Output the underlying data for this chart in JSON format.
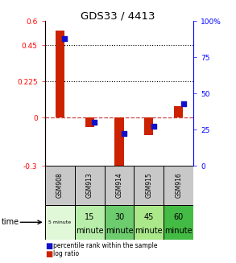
{
  "title": "GDS33 / 4413",
  "samples": [
    "GSM908",
    "GSM913",
    "GSM914",
    "GSM915",
    "GSM916"
  ],
  "time_labels_row1": [
    "5 minute",
    "15",
    "30",
    "45",
    "60"
  ],
  "time_labels_row2": [
    "",
    "minute",
    "minute",
    "minute",
    "minute"
  ],
  "time_colors": [
    "#e0f8d8",
    "#b8eeaa",
    "#6dcc6d",
    "#aae88a",
    "#44bb44"
  ],
  "log_ratios": [
    0.54,
    -0.06,
    -0.34,
    -0.11,
    0.07
  ],
  "percentile_ranks": [
    88,
    30,
    22,
    27,
    43
  ],
  "ylim_left": [
    -0.3,
    0.6
  ],
  "ylim_right": [
    0,
    100
  ],
  "yticks_left": [
    -0.3,
    0,
    0.225,
    0.45,
    0.6
  ],
  "ytick_labels_left": [
    "-0.3",
    "0",
    "0.225",
    "0.45",
    "0.6"
  ],
  "yticks_right": [
    0,
    25,
    50,
    75,
    100
  ],
  "ytick_labels_right": [
    "0",
    "25",
    "50",
    "75",
    "100%"
  ],
  "hlines": [
    0.225,
    0.45
  ],
  "bar_color": "#cc2200",
  "dot_color": "#1111cc",
  "zero_line_color": "#cc4444",
  "cell_color": "#c8c8c8",
  "plot_bg": "#ffffff"
}
